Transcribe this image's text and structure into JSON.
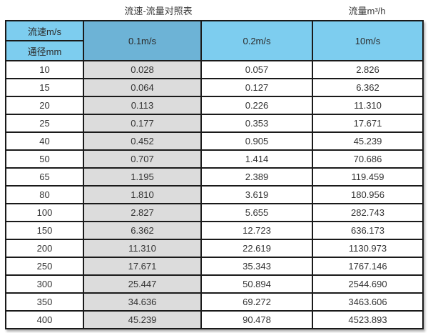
{
  "titles": {
    "main": "流速-流量对照表",
    "right": "流量m³/h"
  },
  "table": {
    "corner_top": "流速m/s",
    "corner_bottom": "通径mm",
    "columns": [
      "0.1m/s",
      "0.2m/s",
      "10m/s"
    ],
    "rows": [
      {
        "diameter": "10",
        "values": [
          "0.028",
          "0.057",
          "2.826"
        ]
      },
      {
        "diameter": "15",
        "values": [
          "0.064",
          "0.127",
          "6.362"
        ]
      },
      {
        "diameter": "20",
        "values": [
          "0.113",
          "0.226",
          "11.310"
        ]
      },
      {
        "diameter": "25",
        "values": [
          "0.177",
          "0.353",
          "17.671"
        ]
      },
      {
        "diameter": "40",
        "values": [
          "0.452",
          "0.905",
          "45.239"
        ]
      },
      {
        "diameter": "50",
        "values": [
          "0.707",
          "1.414",
          "70.686"
        ]
      },
      {
        "diameter": "65",
        "values": [
          "1.195",
          "2.389",
          "119.459"
        ]
      },
      {
        "diameter": "80",
        "values": [
          "1.810",
          "3.619",
          "180.956"
        ]
      },
      {
        "diameter": "100",
        "values": [
          "2.827",
          "5.655",
          "282.743"
        ]
      },
      {
        "diameter": "150",
        "values": [
          "6.362",
          "12.723",
          "636.173"
        ]
      },
      {
        "diameter": "200",
        "values": [
          "11.310",
          "22.619",
          "1130.973"
        ]
      },
      {
        "diameter": "250",
        "values": [
          "17.671",
          "35.343",
          "1767.146"
        ]
      },
      {
        "diameter": "300",
        "values": [
          "25.447",
          "50.894",
          "2544.690"
        ]
      },
      {
        "diameter": "350",
        "values": [
          "34.636",
          "69.272",
          "3463.606"
        ]
      },
      {
        "diameter": "400",
        "values": [
          "45.239",
          "90.478",
          "4523.893"
        ]
      }
    ]
  },
  "colors": {
    "header_light_blue": "#7DCDEF",
    "header_dark_blue": "#6DB3D6",
    "highlight_gray": "#DCDCDC",
    "border": "#1A1A1A"
  },
  "chart_data": {
    "type": "table",
    "title": "流速-流量对照表",
    "unit_label": "流量m³/h",
    "row_header": "通径mm",
    "col_header": "流速m/s",
    "categories": [
      10,
      15,
      20,
      25,
      40,
      50,
      65,
      80,
      100,
      150,
      200,
      250,
      300,
      350,
      400
    ],
    "series": [
      {
        "name": "0.1m/s",
        "values": [
          0.028,
          0.064,
          0.113,
          0.177,
          0.452,
          0.707,
          1.195,
          1.81,
          2.827,
          6.362,
          11.31,
          17.671,
          25.447,
          34.636,
          45.239
        ]
      },
      {
        "name": "0.2m/s",
        "values": [
          0.057,
          0.127,
          0.226,
          0.353,
          0.905,
          1.414,
          2.389,
          3.619,
          5.655,
          12.723,
          22.619,
          35.343,
          50.894,
          69.272,
          90.478
        ]
      },
      {
        "name": "10m/s",
        "values": [
          2.826,
          6.362,
          11.31,
          17.671,
          45.239,
          70.686,
          119.459,
          180.956,
          282.743,
          636.173,
          1130.973,
          1767.146,
          2544.69,
          3463.606,
          4523.893
        ]
      }
    ],
    "highlighted_series": "0.1m/s"
  }
}
